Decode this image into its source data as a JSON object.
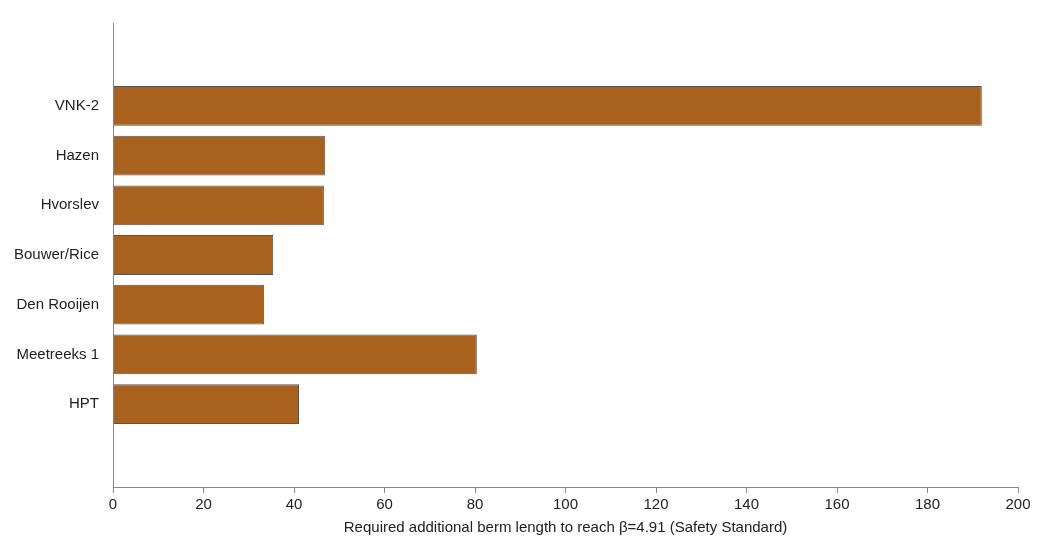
{
  "chart_data": {
    "type": "bar",
    "orientation": "horizontal",
    "categories": [
      "VNK-2",
      "Hazen",
      "Hvorslev",
      "Bouwer/Rice",
      "Den Rooijen",
      "Meetreeks 1",
      "HPT"
    ],
    "values": [
      192,
      46.9,
      46.6,
      35.4,
      33.4,
      80.4,
      41.1
    ],
    "color": "#a8621e",
    "xlabel": "Required additional berm length to reach β=4.91 (Safety Standard)",
    "xlim": [
      0,
      200
    ],
    "xticks": [
      0,
      20,
      40,
      60,
      80,
      100,
      120,
      140,
      160,
      180,
      200
    ]
  }
}
